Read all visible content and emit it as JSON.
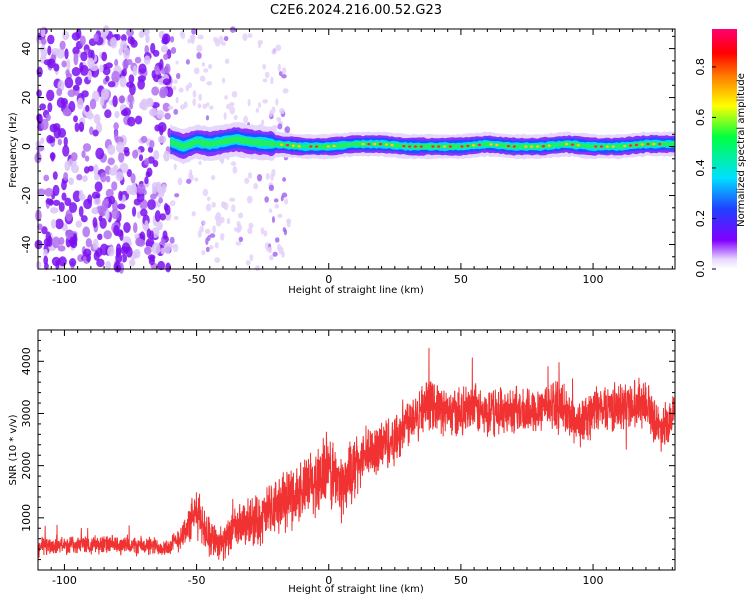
{
  "title": "C2E6.2024.216.00.52.G23",
  "chart_data": [
    {
      "type": "heatmap",
      "xlabel": "Height of straight line (km)",
      "ylabel": "Frequency (Hz)",
      "xlim": [
        -110,
        131
      ],
      "ylim": [
        -50,
        48
      ],
      "xticks": [
        -100,
        -50,
        0,
        50,
        100
      ],
      "yticks": [
        -40,
        -20,
        0,
        20,
        40
      ],
      "colorbar": {
        "label": "Normalized spectral amplitude",
        "ticks": [
          0.0,
          0.2,
          0.4,
          0.6,
          0.8
        ],
        "range": [
          0,
          0.95
        ]
      },
      "noise_region": {
        "x": [
          -110,
          -60
        ],
        "freq_range": [
          -50,
          48
        ]
      },
      "ridge": [
        {
          "x": -60,
          "freq": 2
        },
        {
          "x": -55,
          "freq": 0
        },
        {
          "x": -50,
          "freq": 2
        },
        {
          "x": -45,
          "freq": 1
        },
        {
          "x": -40,
          "freq": 2
        },
        {
          "x": -35,
          "freq": 3
        },
        {
          "x": -30,
          "freq": 2
        },
        {
          "x": -20,
          "freq": 1
        },
        {
          "x": -10,
          "freq": 0
        },
        {
          "x": 0,
          "freq": 0
        },
        {
          "x": 10,
          "freq": 1
        },
        {
          "x": 20,
          "freq": 1
        },
        {
          "x": 30,
          "freq": 0
        },
        {
          "x": 40,
          "freq": 0
        },
        {
          "x": 50,
          "freq": 0
        },
        {
          "x": 60,
          "freq": 1
        },
        {
          "x": 70,
          "freq": 0
        },
        {
          "x": 80,
          "freq": 0
        },
        {
          "x": 90,
          "freq": 1
        },
        {
          "x": 100,
          "freq": 0
        },
        {
          "x": 110,
          "freq": 0
        },
        {
          "x": 120,
          "freq": 1
        },
        {
          "x": 131,
          "freq": 1
        }
      ]
    },
    {
      "type": "line",
      "xlabel": "Height of straight line (km)",
      "ylabel": "SNR (10 * v/v)",
      "xlim": [
        -110,
        131
      ],
      "ylim": [
        0,
        4600
      ],
      "xticks": [
        -100,
        -50,
        0,
        50,
        100
      ],
      "yticks": [
        1000,
        2000,
        3000,
        4000
      ],
      "color": "#f03232",
      "series": [
        {
          "x": [
            -110,
            -100,
            -90,
            -80,
            -70,
            -60,
            -55,
            -50,
            -45,
            -40,
            -35,
            -30,
            -25,
            -20,
            -15,
            -10,
            -5,
            0,
            5,
            10,
            15,
            20,
            25,
            30,
            35,
            40,
            45,
            50,
            55,
            60,
            65,
            70,
            75,
            80,
            85,
            90,
            95,
            100,
            105,
            110,
            115,
            120,
            125,
            131
          ],
          "values": [
            450,
            480,
            500,
            470,
            460,
            440,
            700,
            1100,
            650,
            500,
            800,
            900,
            1000,
            1200,
            1400,
            1500,
            1700,
            1900,
            1600,
            2000,
            2200,
            2400,
            2500,
            2900,
            3100,
            3200,
            3000,
            3000,
            3100,
            2950,
            3050,
            3100,
            3000,
            3150,
            3200,
            3000,
            2800,
            3050,
            3150,
            3100,
            3200,
            3250,
            2700,
            3000
          ],
          "spread": [
            220,
            220,
            220,
            210,
            220,
            200,
            350,
            550,
            450,
            350,
            500,
            550,
            600,
            700,
            700,
            700,
            800,
            900,
            700,
            700,
            650,
            600,
            600,
            600,
            550,
            550,
            550,
            550,
            550,
            550,
            550,
            550,
            550,
            550,
            550,
            550,
            550,
            550,
            550,
            550,
            550,
            550,
            500,
            500
          ]
        }
      ]
    }
  ]
}
